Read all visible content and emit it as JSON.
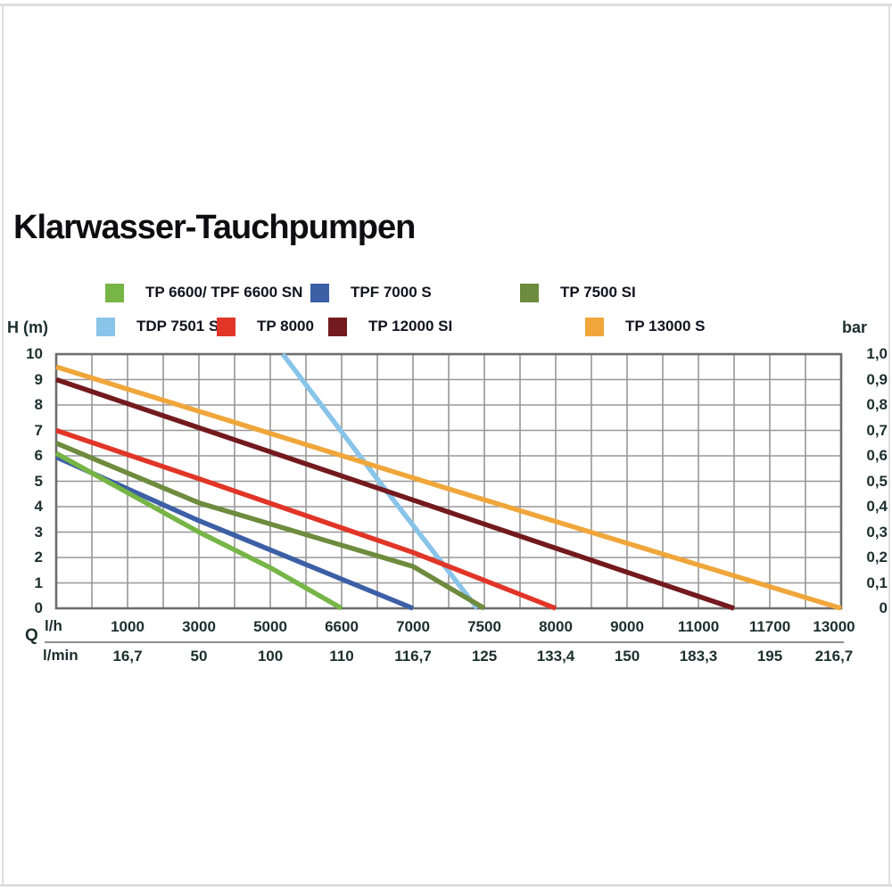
{
  "page": {
    "title": "Klarwasser-Tauchpumpen"
  },
  "chart_data": {
    "type": "line",
    "title": "Klarwasser-Tauchpumpen",
    "x_axis": {
      "unit_primary": "l/h",
      "unit_secondary": "l/min",
      "axis_symbol": "Q",
      "note_layout": "ticks are equally spaced columns (non-linear flow axis), minor gridline between each labeled tick",
      "total_cols": 22,
      "ticks": [
        {
          "col": 2,
          "lh": "1000",
          "lmin": "16,7"
        },
        {
          "col": 4,
          "lh": "3000",
          "lmin": "50"
        },
        {
          "col": 6,
          "lh": "5000",
          "lmin": "100"
        },
        {
          "col": 8,
          "lh": "6600",
          "lmin": "110"
        },
        {
          "col": 10,
          "lh": "7000",
          "lmin": "116,7"
        },
        {
          "col": 12,
          "lh": "7500",
          "lmin": "125"
        },
        {
          "col": 14,
          "lh": "8000",
          "lmin": "133,4"
        },
        {
          "col": 16,
          "lh": "9000",
          "lmin": "150"
        },
        {
          "col": 18,
          "lh": "11000",
          "lmin": "183,3"
        },
        {
          "col": 20,
          "lh": "11700",
          "lmin": "195"
        },
        {
          "col": 22,
          "lh": "13000",
          "lmin": "216,7"
        }
      ]
    },
    "y_axis_left": {
      "label": "H (m)",
      "min": 0,
      "max": 10,
      "ticks": [
        "10",
        "9",
        "8",
        "7",
        "6",
        "5",
        "4",
        "3",
        "2",
        "1",
        "0"
      ]
    },
    "y_axis_right": {
      "label": "bar",
      "ticks": [
        "1,0",
        "0,9",
        "0,8",
        "0,7",
        "0,6",
        "0,5",
        "0,4",
        "0,3",
        "0,2",
        "0,1",
        "0"
      ]
    },
    "grid": {
      "on": true,
      "cols": 22,
      "rows": 10
    },
    "series": [
      {
        "name": "TP 6600/ TPF 6600 SN",
        "color": "#76b546",
        "max_head_m": 6.1,
        "points": [
          [
            0,
            6.1
          ],
          [
            4,
            3.0
          ],
          [
            6,
            1.6
          ],
          [
            8,
            0
          ]
        ]
      },
      {
        "name": "TPF 7000 S",
        "color": "#3c5fa6",
        "max_head_m": 5.95,
        "points": [
          [
            0,
            5.95
          ],
          [
            4,
            3.45
          ],
          [
            10,
            0
          ]
        ]
      },
      {
        "name": "TP 7500 SI",
        "color": "#6e8b3e",
        "max_head_m": 6.5,
        "points": [
          [
            0,
            6.5
          ],
          [
            4,
            4.15
          ],
          [
            10,
            1.65
          ],
          [
            12,
            0
          ]
        ]
      },
      {
        "name": "TDP 7501 S",
        "color": "#89c4e9",
        "max_head_m": 10,
        "points": [
          [
            6.35,
            10
          ],
          [
            9.1,
            4.9
          ],
          [
            11.8,
            0
          ]
        ]
      },
      {
        "name": "TP 8000",
        "color": "#e13527",
        "max_head_m": 7.0,
        "points": [
          [
            0,
            7.0
          ],
          [
            4,
            5.1
          ],
          [
            10,
            2.2
          ],
          [
            14,
            0
          ]
        ]
      },
      {
        "name": "TP 12000 SI",
        "color": "#731a1e",
        "max_head_m": 9.0,
        "points": [
          [
            0,
            9.0
          ],
          [
            9.5,
            4.5
          ],
          [
            19,
            0
          ]
        ]
      },
      {
        "name": "TP 13000 S",
        "color": "#f0a63a",
        "max_head_m": 9.5,
        "points": [
          [
            0,
            9.5
          ],
          [
            11,
            4.7
          ],
          [
            22,
            0
          ]
        ]
      }
    ],
    "draw_order": [
      3,
      6,
      5,
      4,
      2,
      1,
      0
    ],
    "legend_rows": [
      [
        0,
        1,
        2
      ],
      [
        3,
        4,
        5,
        6
      ]
    ],
    "style": {
      "grid_color": "#989898",
      "border_color": "#6d6d6d",
      "tick_text_color": "#1c2e2e",
      "line_width": 5.5
    }
  }
}
